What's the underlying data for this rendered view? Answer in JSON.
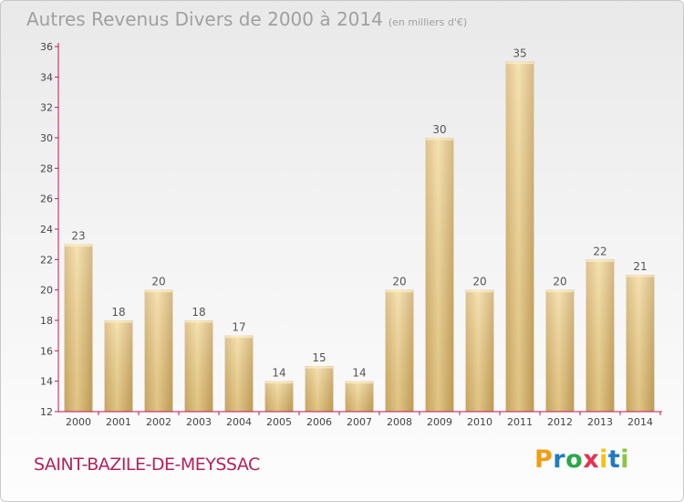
{
  "page": {
    "title": "Autres Revenus Divers de 2000 à 2014",
    "unit_note": "(en milliers d'€)",
    "commune": "SAINT-BAZILE-DE-MEYSSAC",
    "logo": {
      "letters": [
        "P",
        "r",
        "o",
        "x",
        "i",
        "t",
        "i"
      ],
      "colors": [
        "#f39c12",
        "#1f7bc1",
        "#2ba84a",
        "#e4344f",
        "#f1c40f",
        "#1f7bc1",
        "#8cc63f"
      ]
    }
  },
  "chart_data": {
    "type": "bar",
    "categories": [
      "2000",
      "2001",
      "2002",
      "2003",
      "2004",
      "2005",
      "2006",
      "2007",
      "2008",
      "2009",
      "2010",
      "2011",
      "2012",
      "2013",
      "2014"
    ],
    "values": [
      23,
      18,
      20,
      18,
      17,
      14,
      15,
      14,
      20,
      30,
      20,
      35,
      20,
      22,
      21
    ],
    "ylim": [
      12,
      36
    ],
    "yticks": [
      12,
      14,
      16,
      18,
      20,
      22,
      24,
      26,
      28,
      30,
      32,
      34,
      36
    ],
    "grid": false,
    "bar_color": "#e3c47e",
    "axis_color": "#c2185b"
  }
}
